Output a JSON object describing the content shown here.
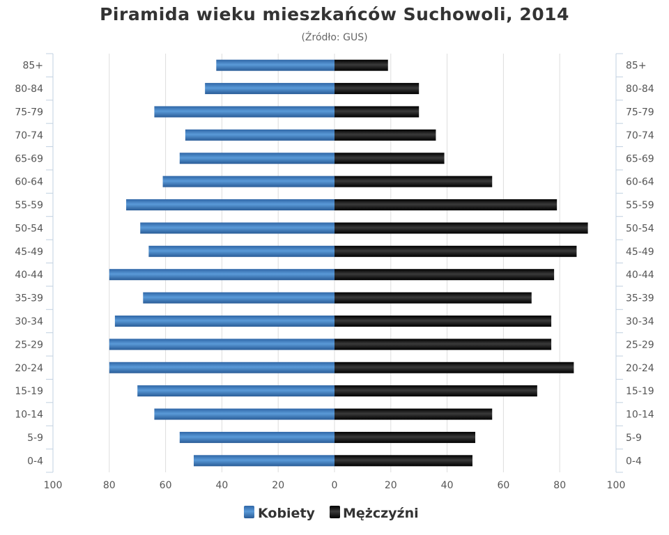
{
  "chart_data": {
    "type": "bar",
    "orientation": "horizontal-pyramid",
    "title": "Piramida wieku mieszkańców Suchowoli, 2014",
    "subtitle": "(Źródło: GUS)",
    "categories": [
      "85+",
      "80-84",
      "75-79",
      "70-74",
      "65-69",
      "60-64",
      "55-59",
      "50-54",
      "45-49",
      "40-44",
      "35-39",
      "30-34",
      "25-29",
      "20-24",
      "15-19",
      "10-14",
      "5-9",
      "0-4"
    ],
    "series": [
      {
        "name": "Kobiety",
        "side": "left",
        "color": "#3d7dc0",
        "values": [
          42,
          46,
          64,
          53,
          55,
          61,
          74,
          69,
          66,
          80,
          68,
          78,
          80,
          80,
          70,
          64,
          55,
          50
        ]
      },
      {
        "name": "Mężczyźni",
        "side": "right",
        "color": "#111111",
        "values": [
          19,
          30,
          30,
          36,
          39,
          56,
          79,
          90,
          86,
          78,
          70,
          77,
          77,
          85,
          72,
          56,
          50,
          49
        ]
      }
    ],
    "xlim": [
      -100,
      100
    ],
    "x_ticks": [
      "100",
      "80",
      "60",
      "40",
      "20",
      "0",
      "20",
      "40",
      "60",
      "80",
      "100"
    ],
    "grid": true,
    "legend_position": "bottom-center"
  }
}
